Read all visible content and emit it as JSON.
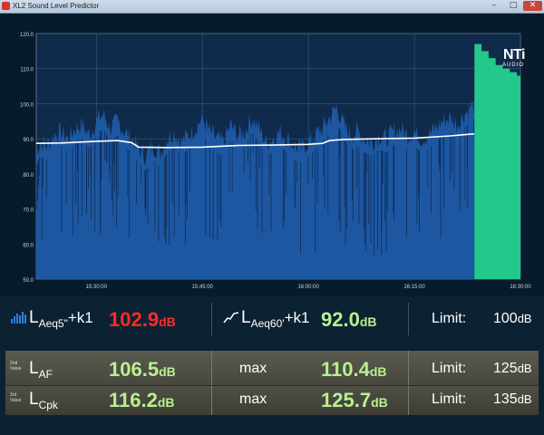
{
  "window": {
    "title": "XL2 Sound Level Predictor",
    "minimize_icon": "minimize-icon",
    "maximize_icon": "maximize-icon",
    "close_icon": "close-icon",
    "minimize_glyph": "–",
    "maximize_glyph": "□",
    "close_glyph": "✕"
  },
  "logo": {
    "main": "NTi",
    "sub": "AUDIO"
  },
  "colors": {
    "background": "#0c2233",
    "plot_bg": "#0f2a4a",
    "history_fill": "#1f5aa6",
    "average_line": "#ffffff",
    "prediction_fill": "#23c98a",
    "value_green": "#b9f08e",
    "value_red": "#ff2b23"
  },
  "chart_data": {
    "type": "area",
    "ylim": [
      50,
      120
    ],
    "yticks": [
      "120.0",
      "110.0",
      "100.0",
      "90.0",
      "80.0",
      "70.0",
      "60.0",
      "50.0"
    ],
    "xticks": [
      "15:30:00",
      "15:45:00",
      "16:00:00",
      "16:15:00",
      "16:30:00"
    ],
    "xtick_minutes": [
      30,
      45,
      60,
      75,
      90
    ],
    "x_start_minute": 21.5,
    "x_end_minute": 90,
    "grid": true,
    "history_end_minute": 83.5,
    "series": [
      {
        "kind": "level_envelope",
        "x_minutes": [
          21.5,
          22,
          23,
          24,
          25,
          26,
          27,
          28,
          29,
          30,
          31,
          32,
          33,
          34,
          35,
          36,
          37,
          38,
          39,
          40,
          41,
          42,
          43,
          44,
          45,
          46,
          47,
          48,
          49,
          50,
          51,
          52,
          53,
          54,
          55,
          56,
          57,
          58,
          59,
          60,
          61,
          62,
          63,
          64,
          65,
          66,
          67,
          68,
          69,
          70,
          71,
          72,
          73,
          74,
          75,
          76,
          77,
          78,
          79,
          80,
          81,
          82,
          83,
          83.5
        ],
        "y_db": [
          86,
          89,
          88,
          91,
          92,
          90,
          93,
          94,
          91,
          95,
          97,
          93,
          95,
          92,
          90,
          87,
          85,
          88,
          86,
          90,
          92,
          89,
          91,
          93,
          96,
          92,
          90,
          89,
          94,
          91,
          92,
          96,
          93,
          89,
          90,
          92,
          90,
          88,
          87,
          89,
          91,
          93,
          96,
          99,
          94,
          91,
          92,
          90,
          89,
          91,
          90,
          92,
          93,
          91,
          92,
          90,
          91,
          93,
          95,
          96,
          94,
          97,
          99,
          100
        ]
      },
      {
        "kind": "running_average",
        "x_minutes": [
          21.5,
          25,
          30,
          33,
          35,
          36,
          40,
          45,
          50,
          55,
          60,
          62,
          63,
          65,
          70,
          75,
          80,
          83.5
        ],
        "y_db": [
          88.7,
          88.8,
          89.3,
          89.5,
          88.9,
          87.6,
          87.5,
          87.6,
          88.1,
          88.2,
          88.4,
          88.7,
          89.5,
          89.8,
          90.0,
          90.2,
          90.8,
          91.4
        ]
      },
      {
        "kind": "prediction",
        "x_minutes": [
          83.5,
          84.5,
          85.5,
          86.5,
          87.5,
          88.5,
          89.5,
          90
        ],
        "y_db": [
          117.0,
          115.0,
          113.0,
          111.0,
          110.0,
          109.0,
          108.0,
          107.0
        ]
      }
    ]
  },
  "rows": {
    "aeq": {
      "icon": "bar-level-icon",
      "trend_icon": "trend-line-icon",
      "label_L": "L",
      "label_sub": "Aeq5\"",
      "label_suffix": "+k1",
      "value": "102.9",
      "unit": "dB",
      "label2_L": "L",
      "label2_sub": "Aeq60'",
      "label2_suffix": "+k1",
      "value2": "92.0",
      "unit2": "dB",
      "limit_label": "Limit:",
      "limit_value": "100",
      "limit_unit": "dB"
    },
    "laf": {
      "tag": "2nd Value",
      "label_L": "L",
      "label_sub": "AF",
      "value": "106.5",
      "unit": "dB",
      "max_label": "max",
      "max_value": "110.4",
      "max_unit": "dB",
      "limit_label": "Limit:",
      "limit_value": "125",
      "limit_unit": "dB"
    },
    "lcpk": {
      "tag": "3rd Value",
      "label_L": "L",
      "label_sub": "Cpk",
      "value": "116.2",
      "unit": "dB",
      "max_label": "max",
      "max_value": "125.7",
      "max_unit": "dB",
      "limit_label": "Limit:",
      "limit_value": "135",
      "limit_unit": "dB"
    }
  }
}
